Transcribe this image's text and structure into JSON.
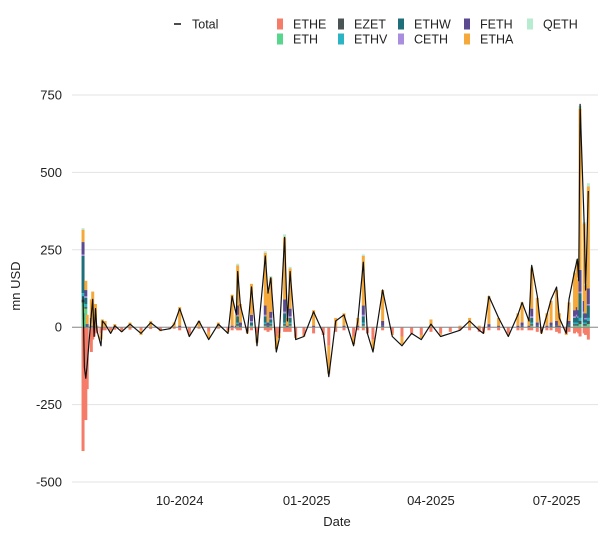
{
  "chart_data": {
    "type": "bar",
    "title": "",
    "xlabel": "Date",
    "ylabel": "mn USD",
    "ylim": [
      -500,
      750
    ],
    "yticks": [
      750,
      500,
      250,
      0,
      -250,
      -500
    ],
    "ytick_labels": [
      "750",
      "500",
      "250",
      "0",
      "-250",
      "-500"
    ],
    "xticks": [
      {
        "date": "2024-10-01",
        "label": "10-2024"
      },
      {
        "date": "2025-01-01",
        "label": "01-2025"
      },
      {
        "date": "2025-04-01",
        "label": "04-2025"
      },
      {
        "date": "2025-07-01",
        "label": "07-2025"
      }
    ],
    "xlim": [
      "2024-07-15",
      "2025-07-31"
    ],
    "grid": "horizontal",
    "legend_position": "top",
    "total_line": {
      "name": "Total",
      "color": "#111111",
      "x": [
        "2024-07-23",
        "2024-07-24",
        "2024-07-25",
        "2024-07-26",
        "2024-07-29",
        "2024-07-30",
        "2024-07-31",
        "2024-08-01",
        "2024-08-02",
        "2024-08-05",
        "2024-08-06",
        "2024-08-08",
        "2024-08-12",
        "2024-08-15",
        "2024-08-20",
        "2024-08-26",
        "2024-09-03",
        "2024-09-10",
        "2024-09-17",
        "2024-09-24",
        "2024-09-27",
        "2024-10-01",
        "2024-10-08",
        "2024-10-15",
        "2024-10-22",
        "2024-10-29",
        "2024-11-05",
        "2024-11-08",
        "2024-11-11",
        "2024-11-12",
        "2024-11-14",
        "2024-11-19",
        "2024-11-22",
        "2024-11-26",
        "2024-12-02",
        "2024-12-04",
        "2024-12-06",
        "2024-12-10",
        "2024-12-12",
        "2024-12-16",
        "2024-12-18",
        "2024-12-20",
        "2024-12-24",
        "2024-12-30",
        "2025-01-06",
        "2025-01-13",
        "2025-01-17",
        "2025-01-22",
        "2025-01-28",
        "2025-02-04",
        "2025-02-07",
        "2025-02-11",
        "2025-02-14",
        "2025-02-18",
        "2025-02-25",
        "2025-03-04",
        "2025-03-11",
        "2025-03-18",
        "2025-03-25",
        "2025-04-01",
        "2025-04-08",
        "2025-04-15",
        "2025-04-22",
        "2025-04-29",
        "2025-05-06",
        "2025-05-09",
        "2025-05-13",
        "2025-05-20",
        "2025-05-27",
        "2025-06-03",
        "2025-06-06",
        "2025-06-11",
        "2025-06-13",
        "2025-06-17",
        "2025-06-20",
        "2025-06-24",
        "2025-06-27",
        "2025-07-01",
        "2025-07-03",
        "2025-07-08",
        "2025-07-10",
        "2025-07-14",
        "2025-07-16",
        "2025-07-17",
        "2025-07-18",
        "2025-07-21",
        "2025-07-22",
        "2025-07-24"
      ],
      "values": [
        100,
        -130,
        -165,
        -120,
        40,
        90,
        -30,
        60,
        -10,
        -60,
        20,
        10,
        -20,
        5,
        -15,
        10,
        -20,
        15,
        -10,
        -5,
        10,
        60,
        -30,
        20,
        -40,
        10,
        -20,
        100,
        40,
        180,
        70,
        -20,
        130,
        -60,
        230,
        110,
        160,
        -80,
        -40,
        290,
        20,
        180,
        -40,
        -30,
        50,
        -20,
        -160,
        20,
        40,
        -60,
        20,
        210,
        -20,
        -80,
        120,
        -30,
        -60,
        -20,
        -40,
        10,
        -30,
        -20,
        -10,
        20,
        -10,
        -20,
        100,
        30,
        -30,
        40,
        80,
        20,
        200,
        100,
        -20,
        40,
        90,
        130,
        30,
        -20,
        90,
        180,
        220,
        150,
        720,
        330,
        120,
        440
      ]
    },
    "series": [
      {
        "name": "ETHE",
        "color": "#f47c68",
        "values": [
          -400,
          -250,
          -300,
          -200,
          -80,
          -40,
          -30,
          -20,
          -15,
          -20,
          -10,
          -10,
          -10,
          -8,
          -10,
          -8,
          -10,
          -6,
          -8,
          -5,
          -5,
          -10,
          -20,
          -5,
          -15,
          -5,
          -10,
          -10,
          -5,
          -10,
          -10,
          -15,
          -10,
          -20,
          -10,
          -15,
          -10,
          -30,
          -20,
          -15,
          -15,
          -15,
          -30,
          -25,
          -20,
          -25,
          -60,
          -15,
          -10,
          -30,
          -10,
          -10,
          -20,
          -40,
          -10,
          -20,
          -30,
          -20,
          -25,
          -15,
          -20,
          -15,
          -10,
          -10,
          -15,
          -15,
          -10,
          -10,
          -20,
          -10,
          -10,
          -10,
          -10,
          -15,
          -15,
          -10,
          -10,
          -15,
          -20,
          -20,
          -15,
          -20,
          -15,
          -20,
          -30,
          -20,
          -25,
          -40
        ]
      },
      {
        "name": "ETH",
        "color": "#58d68d",
        "values": [
          80,
          20,
          60,
          0,
          10,
          0,
          0,
          0,
          0,
          0,
          0,
          0,
          0,
          0,
          0,
          0,
          0,
          0,
          0,
          0,
          0,
          0,
          0,
          0,
          0,
          0,
          0,
          0,
          0,
          5,
          0,
          0,
          5,
          0,
          5,
          0,
          5,
          0,
          0,
          5,
          0,
          5,
          0,
          0,
          0,
          0,
          0,
          0,
          0,
          0,
          0,
          5,
          0,
          0,
          0,
          0,
          0,
          0,
          0,
          0,
          0,
          0,
          0,
          0,
          0,
          0,
          0,
          0,
          0,
          0,
          0,
          0,
          5,
          0,
          0,
          0,
          0,
          0,
          0,
          0,
          0,
          5,
          5,
          5,
          10,
          5,
          5,
          10
        ]
      },
      {
        "name": "EZET",
        "color": "#4a5454",
        "values": [
          10,
          0,
          5,
          0,
          0,
          0,
          0,
          0,
          0,
          0,
          0,
          0,
          0,
          0,
          0,
          0,
          0,
          0,
          0,
          0,
          0,
          0,
          0,
          0,
          0,
          0,
          0,
          0,
          0,
          5,
          0,
          0,
          0,
          0,
          5,
          0,
          5,
          0,
          0,
          5,
          0,
          5,
          0,
          0,
          0,
          0,
          0,
          0,
          0,
          0,
          0,
          5,
          0,
          0,
          0,
          0,
          0,
          0,
          0,
          0,
          0,
          0,
          0,
          0,
          0,
          0,
          0,
          0,
          0,
          0,
          0,
          0,
          5,
          0,
          0,
          0,
          0,
          0,
          0,
          0,
          5,
          5,
          5,
          5,
          10,
          5,
          5,
          10
        ]
      },
      {
        "name": "ETHV",
        "color": "#2bb5c4",
        "values": [
          20,
          5,
          10,
          0,
          5,
          0,
          0,
          0,
          0,
          0,
          0,
          0,
          0,
          0,
          0,
          0,
          0,
          0,
          0,
          0,
          0,
          0,
          0,
          0,
          0,
          0,
          0,
          0,
          0,
          5,
          0,
          0,
          0,
          0,
          5,
          0,
          5,
          0,
          0,
          5,
          0,
          5,
          0,
          0,
          0,
          0,
          0,
          0,
          0,
          0,
          0,
          5,
          0,
          0,
          0,
          0,
          0,
          0,
          0,
          0,
          0,
          0,
          0,
          0,
          0,
          0,
          0,
          0,
          0,
          0,
          0,
          0,
          5,
          0,
          0,
          0,
          0,
          0,
          0,
          0,
          0,
          5,
          5,
          5,
          10,
          5,
          5,
          10
        ]
      },
      {
        "name": "ETHW",
        "color": "#1f6f7a",
        "values": [
          120,
          10,
          20,
          5,
          5,
          0,
          0,
          0,
          0,
          0,
          0,
          0,
          0,
          0,
          0,
          0,
          0,
          0,
          0,
          0,
          0,
          0,
          0,
          0,
          0,
          0,
          0,
          0,
          0,
          20,
          5,
          0,
          10,
          0,
          20,
          5,
          10,
          0,
          0,
          30,
          0,
          15,
          0,
          0,
          0,
          0,
          0,
          0,
          0,
          0,
          0,
          20,
          0,
          0,
          5,
          0,
          0,
          0,
          0,
          0,
          0,
          0,
          0,
          0,
          0,
          0,
          0,
          0,
          0,
          0,
          5,
          0,
          15,
          5,
          0,
          0,
          5,
          5,
          0,
          0,
          5,
          15,
          20,
          15,
          80,
          30,
          10,
          40
        ]
      },
      {
        "name": "CETH",
        "color": "#a98ee0",
        "values": [
          5,
          0,
          5,
          0,
          0,
          0,
          0,
          0,
          0,
          0,
          0,
          0,
          0,
          0,
          0,
          0,
          0,
          0,
          0,
          0,
          0,
          0,
          0,
          0,
          0,
          0,
          0,
          0,
          0,
          5,
          0,
          0,
          5,
          0,
          5,
          0,
          5,
          0,
          0,
          5,
          0,
          5,
          0,
          0,
          0,
          0,
          0,
          0,
          0,
          0,
          0,
          5,
          0,
          0,
          0,
          0,
          0,
          0,
          0,
          0,
          0,
          0,
          0,
          0,
          0,
          0,
          0,
          0,
          0,
          0,
          0,
          0,
          5,
          0,
          0,
          0,
          0,
          0,
          0,
          0,
          0,
          5,
          5,
          5,
          5,
          5,
          5,
          5
        ]
      },
      {
        "name": "FETH",
        "color": "#5b4a8f",
        "values": [
          40,
          10,
          20,
          5,
          10,
          5,
          0,
          5,
          0,
          0,
          0,
          0,
          0,
          0,
          0,
          0,
          0,
          0,
          0,
          0,
          0,
          5,
          0,
          0,
          0,
          0,
          0,
          5,
          5,
          30,
          10,
          0,
          20,
          0,
          30,
          10,
          20,
          0,
          0,
          40,
          5,
          25,
          0,
          0,
          5,
          0,
          0,
          0,
          5,
          0,
          5,
          30,
          0,
          0,
          15,
          0,
          0,
          0,
          0,
          0,
          0,
          0,
          0,
          0,
          0,
          0,
          10,
          5,
          0,
          5,
          10,
          5,
          25,
          10,
          0,
          5,
          10,
          15,
          5,
          0,
          10,
          20,
          25,
          20,
          70,
          35,
          15,
          50
        ]
      },
      {
        "name": "ETHA",
        "color": "#f5a93b",
        "values": [
          40,
          20,
          30,
          30,
          60,
          110,
          10,
          70,
          5,
          -20,
          25,
          20,
          -5,
          10,
          -5,
          15,
          -15,
          20,
          -5,
          0,
          15,
          60,
          -5,
          20,
          -20,
          15,
          -5,
          100,
          35,
          130,
          60,
          -5,
          100,
          -30,
          170,
          100,
          110,
          -40,
          -15,
          200,
          25,
          130,
          -5,
          -5,
          50,
          0,
          -90,
          30,
          40,
          -25,
          25,
          160,
          0,
          -30,
          100,
          -5,
          -25,
          0,
          -10,
          25,
          -5,
          0,
          5,
          30,
          5,
          -5,
          90,
          25,
          -5,
          40,
          65,
          20,
          130,
          80,
          -5,
          40,
          70,
          100,
          40,
          -5,
          60,
          120,
          150,
          100,
          520,
          250,
          90,
          330
        ]
      },
      {
        "name": "QETH",
        "color": "#b7ecd1",
        "values": [
          5,
          0,
          0,
          0,
          0,
          0,
          0,
          0,
          0,
          0,
          0,
          0,
          0,
          0,
          0,
          0,
          0,
          0,
          0,
          0,
          0,
          0,
          0,
          0,
          0,
          0,
          0,
          0,
          0,
          5,
          0,
          0,
          0,
          0,
          5,
          0,
          5,
          0,
          0,
          10,
          0,
          5,
          0,
          0,
          0,
          0,
          0,
          0,
          0,
          0,
          0,
          5,
          0,
          0,
          0,
          0,
          0,
          0,
          0,
          0,
          0,
          0,
          0,
          0,
          0,
          0,
          0,
          0,
          0,
          0,
          0,
          0,
          5,
          0,
          0,
          0,
          0,
          0,
          0,
          0,
          0,
          5,
          5,
          5,
          10,
          5,
          5,
          10
        ]
      }
    ]
  }
}
